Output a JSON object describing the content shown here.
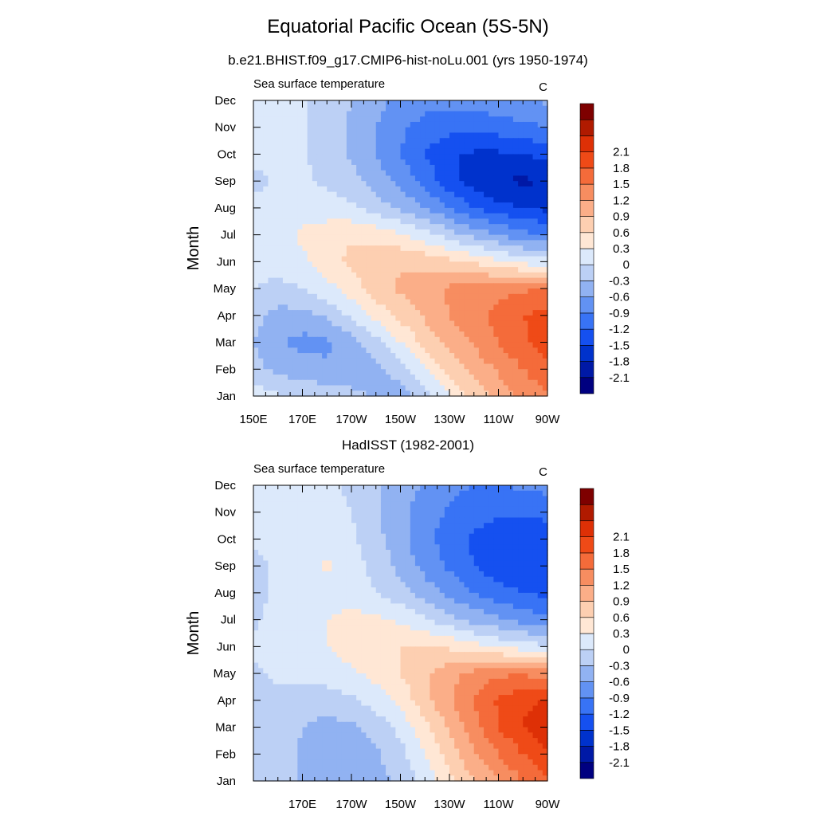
{
  "figure": {
    "title": "Equatorial Pacific Ocean (5S-5N)"
  },
  "colorbar": {
    "colors": [
      "#000080",
      "#0019A6",
      "#0032CC",
      "#1550F0",
      "#3873F5",
      "#6292F3",
      "#91B2F2",
      "#BCD0F5",
      "#DCE9FB",
      "#FFE7D5",
      "#FDCFB1",
      "#FBAE88",
      "#F78D60",
      "#F46B3A",
      "#EF4A17",
      "#DE3006",
      "#B01A00",
      "#7E0000"
    ],
    "labels": [
      "-2.1",
      "-1.8",
      "-1.5",
      "-1.2",
      "-0.9",
      "-0.6",
      "-0.3",
      "0",
      "0.3",
      "0.6",
      "0.9",
      "1.2",
      "1.5",
      "1.8",
      "2.1"
    ]
  },
  "chart_data": [
    {
      "type": "heatmap",
      "title": "b.e21.BHIST.f09_g17.CMIP6-hist-noLu.001 (yrs 1950-1974)",
      "subtitle": "Sea surface temperature",
      "units": "C",
      "ylabel": "Month",
      "xlabel": "",
      "x_tick_labels": [
        "150E",
        "170E",
        "170W",
        "150W",
        "130W",
        "110W",
        "90W"
      ],
      "y_tick_labels": [
        "Jan",
        "Feb",
        "Mar",
        "Apr",
        "May",
        "Jun",
        "Jul",
        "Aug",
        "Sep",
        "Oct",
        "Nov",
        "Dec"
      ],
      "x_range_deg_east": [
        150,
        270
      ],
      "levels": [
        -2.1,
        -1.8,
        -1.5,
        -1.2,
        -0.9,
        -0.6,
        -0.3,
        0,
        0.3,
        0.6,
        0.9,
        1.2,
        1.5,
        1.8,
        2.1
      ],
      "lon_deg_east": [
        150,
        160,
        170,
        180,
        190,
        200,
        210,
        220,
        230,
        240,
        250,
        260,
        270
      ],
      "z": [
        [
          0.15,
          0.05,
          -0.05,
          -0.1,
          -0.2,
          -0.35,
          -0.45,
          -0.1,
          0.3,
          0.7,
          1.0,
          1.3,
          1.5
        ],
        [
          -0.2,
          -0.4,
          -0.5,
          -0.55,
          -0.55,
          -0.4,
          -0.15,
          0.3,
          0.7,
          1.0,
          1.25,
          1.5,
          1.7
        ],
        [
          -0.3,
          -0.55,
          -0.7,
          -0.65,
          -0.45,
          -0.1,
          0.3,
          0.7,
          1.0,
          1.25,
          1.5,
          1.75,
          2.0
        ],
        [
          -0.2,
          -0.4,
          -0.4,
          -0.25,
          0.05,
          0.4,
          0.7,
          0.95,
          1.2,
          1.4,
          1.6,
          1.8,
          1.9
        ],
        [
          0.0,
          -0.1,
          0.0,
          0.2,
          0.45,
          0.75,
          0.95,
          1.1,
          1.25,
          1.35,
          1.4,
          1.45,
          1.5
        ],
        [
          0.1,
          0.15,
          0.25,
          0.45,
          0.7,
          0.8,
          0.85,
          0.8,
          0.7,
          0.55,
          0.35,
          0.2,
          0.1
        ],
        [
          0.15,
          0.2,
          0.35,
          0.45,
          0.55,
          0.5,
          0.35,
          0.1,
          -0.15,
          -0.4,
          -0.6,
          -0.8,
          -0.9
        ],
        [
          0.1,
          0.15,
          0.2,
          0.15,
          0.05,
          -0.15,
          -0.35,
          -0.6,
          -0.9,
          -1.2,
          -1.4,
          -1.5,
          -1.6
        ],
        [
          -0.1,
          0.05,
          0.05,
          -0.05,
          -0.2,
          -0.45,
          -0.7,
          -1.0,
          -1.4,
          -1.65,
          -1.8,
          -1.85,
          -1.8
        ],
        [
          0.1,
          0.1,
          0.05,
          -0.15,
          -0.35,
          -0.6,
          -0.9,
          -1.2,
          -1.45,
          -1.55,
          -1.55,
          -1.5,
          -1.4
        ],
        [
          0.1,
          0.1,
          0.05,
          -0.15,
          -0.35,
          -0.6,
          -0.85,
          -1.0,
          -1.1,
          -1.1,
          -1.05,
          -1.0,
          -0.9
        ],
        [
          0.1,
          0.1,
          0.05,
          -0.15,
          -0.3,
          -0.5,
          -0.7,
          -0.8,
          -0.8,
          -0.75,
          -0.7,
          -0.6,
          -0.55
        ]
      ]
    },
    {
      "type": "heatmap",
      "title": "HadISST (1982-2001)",
      "subtitle": "Sea surface temperature",
      "units": "C",
      "ylabel": "Month",
      "xlabel": "",
      "x_tick_labels": [
        "170E",
        "170W",
        "150W",
        "130W",
        "110W",
        "90W"
      ],
      "y_tick_labels": [
        "Jan",
        "Feb",
        "Mar",
        "Apr",
        "May",
        "Jun",
        "Jul",
        "Aug",
        "Sep",
        "Oct",
        "Nov",
        "Dec"
      ],
      "x_range_deg_east": [
        150,
        270
      ],
      "levels": [
        -2.1,
        -1.8,
        -1.5,
        -1.2,
        -0.9,
        -0.6,
        -0.3,
        0,
        0.3,
        0.6,
        0.9,
        1.2,
        1.5,
        1.8,
        2.1
      ],
      "lon_deg_east": [
        150,
        160,
        170,
        180,
        190,
        200,
        210,
        220,
        230,
        240,
        250,
        260,
        270
      ],
      "z": [
        [
          0.0,
          -0.1,
          -0.35,
          -0.45,
          -0.45,
          -0.4,
          -0.25,
          0.1,
          0.5,
          0.9,
          1.2,
          1.5,
          1.8
        ],
        [
          0.0,
          -0.1,
          -0.35,
          -0.45,
          -0.45,
          -0.35,
          -0.1,
          0.3,
          0.75,
          1.15,
          1.5,
          1.8,
          2.05
        ],
        [
          -0.05,
          -0.1,
          -0.3,
          -0.4,
          -0.35,
          -0.2,
          0.1,
          0.5,
          0.95,
          1.4,
          1.8,
          2.1,
          2.3
        ],
        [
          -0.05,
          -0.05,
          -0.15,
          -0.15,
          -0.05,
          0.15,
          0.4,
          0.8,
          1.15,
          1.5,
          1.85,
          2.05,
          2.1
        ],
        [
          -0.05,
          0.05,
          0.1,
          0.15,
          0.25,
          0.4,
          0.6,
          0.85,
          1.1,
          1.3,
          1.45,
          1.45,
          1.35
        ],
        [
          0.05,
          0.1,
          0.2,
          0.3,
          0.45,
          0.55,
          0.6,
          0.6,
          0.55,
          0.4,
          0.25,
          0.15,
          0.05
        ],
        [
          -0.05,
          0.1,
          0.2,
          0.3,
          0.4,
          0.35,
          0.25,
          0.05,
          -0.2,
          -0.4,
          -0.55,
          -0.7,
          -0.8
        ],
        [
          -0.1,
          0.05,
          0.1,
          0.15,
          0.15,
          0.0,
          -0.2,
          -0.45,
          -0.7,
          -0.9,
          -1.1,
          -1.2,
          -1.3
        ],
        [
          -0.1,
          0.05,
          0.1,
          0.35,
          0.15,
          -0.1,
          -0.4,
          -0.7,
          -0.95,
          -1.2,
          -1.4,
          -1.5,
          -1.5
        ],
        [
          0.05,
          0.1,
          0.1,
          0.15,
          0.05,
          -0.2,
          -0.5,
          -0.8,
          -1.05,
          -1.25,
          -1.35,
          -1.4,
          -1.4
        ],
        [
          0.1,
          0.1,
          0.1,
          0.1,
          0.0,
          -0.25,
          -0.5,
          -0.75,
          -0.95,
          -1.1,
          -1.15,
          -1.15,
          -1.1
        ],
        [
          0.1,
          0.1,
          0.1,
          0.05,
          -0.05,
          -0.25,
          -0.45,
          -0.65,
          -0.8,
          -0.9,
          -0.9,
          -0.85,
          -0.8
        ]
      ]
    }
  ]
}
